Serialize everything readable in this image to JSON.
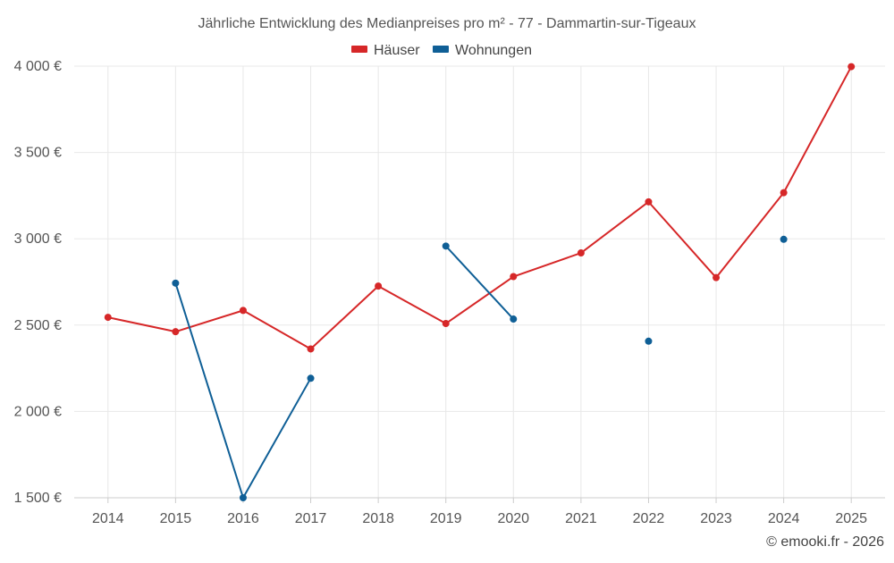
{
  "chart_data": {
    "type": "line",
    "title": "Jährliche Entwicklung des Medianpreises pro m² - 77 - Dammartin-sur-Tigeaux",
    "categories": [
      "2014",
      "2015",
      "2016",
      "2017",
      "2018",
      "2019",
      "2020",
      "2021",
      "2022",
      "2023",
      "2024",
      "2025"
    ],
    "series": [
      {
        "name": "Häuser",
        "color": "#d62728",
        "values": [
          2545,
          2462,
          2585,
          2362,
          2726,
          2509,
          2781,
          2918,
          3214,
          2775,
          3267,
          3997
        ]
      },
      {
        "name": "Wohnungen",
        "color": "#0f5f96",
        "values": [
          null,
          2743,
          1500,
          2192,
          null,
          2958,
          2535,
          null,
          2407,
          null,
          2997,
          null
        ]
      }
    ],
    "ylim": [
      1500,
      4000
    ],
    "yticks": [
      1500,
      2000,
      2500,
      3000,
      3500,
      4000
    ],
    "ytick_labels": [
      "1 500 €",
      "2 000 €",
      "2 500 €",
      "3 000 €",
      "3 500 €",
      "4 000 €"
    ],
    "legend_position": "top-center",
    "grid": true,
    "xlabel": "",
    "ylabel": ""
  },
  "credit": "© emooki.fr - 2026"
}
